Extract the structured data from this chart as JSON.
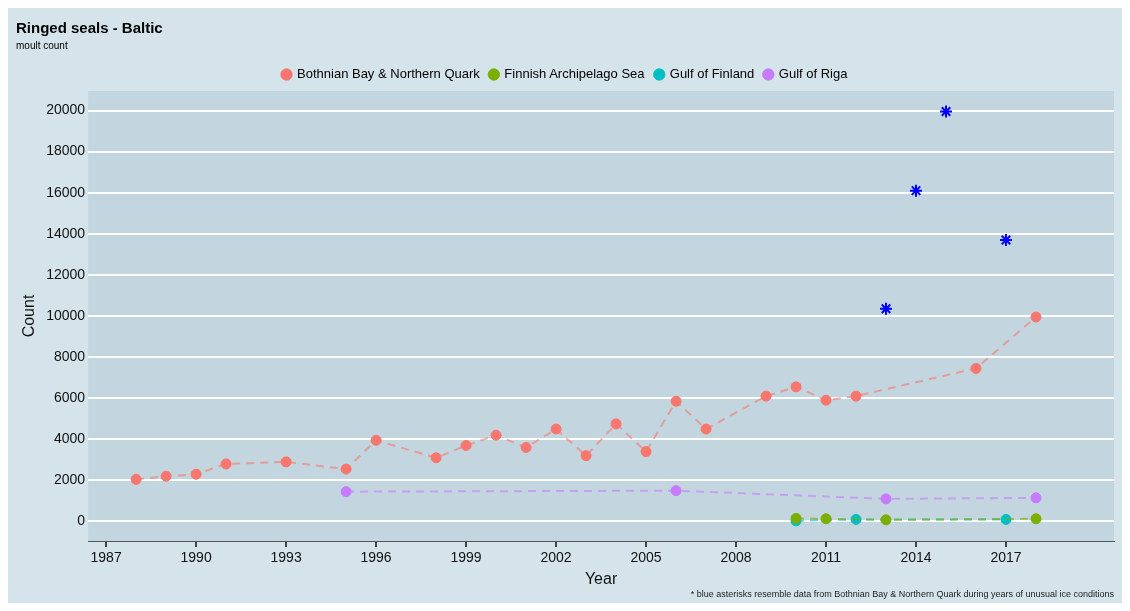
{
  "chart_data": {
    "type": "line",
    "title": "Ringed seals - Baltic",
    "subtitle": "moult count",
    "xlabel": "Year",
    "ylabel": "Count",
    "annotations": [
      "* blue asterisks resemble data from Bothnian Bay & Northern Quark during years of unusual ice conditions"
    ],
    "series": [
      {
        "name": "Bothnian Bay & Northern Quark",
        "color": "#f8766d",
        "x": [
          1988,
          1989,
          1990,
          1991,
          1993,
          1995,
          1996,
          1998,
          1999,
          2000,
          2001,
          2002,
          2003,
          2004,
          2005,
          2006,
          2007,
          2009,
          2010,
          2011,
          2012,
          2016,
          2018
        ],
        "values": [
          2050,
          2200,
          2300,
          2800,
          2900,
          2550,
          3950,
          3100,
          3700,
          4200,
          3600,
          4500,
          3200,
          4750,
          3400,
          5850,
          4500,
          6100,
          6550,
          5900,
          6100,
          7450,
          9950
        ]
      },
      {
        "name": "Finnish Archipelago Sea",
        "color": "#7cae00",
        "x": [
          2010,
          2011,
          2013,
          2018
        ],
        "values": [
          150,
          130,
          80,
          130
        ]
      },
      {
        "name": "Gulf of Finland",
        "color": "#00bfc4",
        "x": [
          2010,
          2012,
          2017
        ],
        "values": [
          30,
          100,
          100
        ]
      },
      {
        "name": "Gulf of Riga",
        "color": "#c77cff",
        "x": [
          1995,
          2006,
          2013,
          2018
        ],
        "values": [
          1450,
          1500,
          1100,
          1150
        ]
      },
      {
        "type": "scatter",
        "color": "#0000ff",
        "marker": "cross",
        "x": [
          2013,
          2014,
          2015,
          2017
        ],
        "values": [
          10350,
          16100,
          19950,
          13700
        ]
      }
    ],
    "marker": "circle",
    "line_style": "dashed",
    "grid": "y",
    "legend": "top",
    "xlim": [
      1986.4,
      2020.6
    ],
    "xticks": [
      1987,
      1990,
      1993,
      1996,
      1999,
      2002,
      2005,
      2008,
      2011,
      2014,
      2017
    ],
    "ylim": [
      -950,
      20950
    ],
    "yticks": [
      0,
      2000,
      4000,
      6000,
      8000,
      10000,
      12000,
      14000,
      16000,
      18000,
      20000
    ]
  }
}
